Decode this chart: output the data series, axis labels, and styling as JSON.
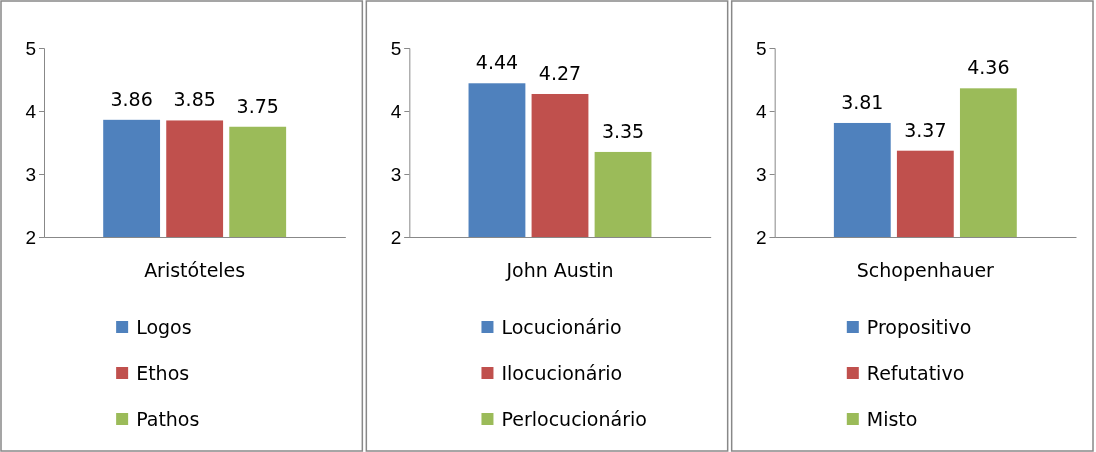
{
  "chart_data": [
    {
      "type": "bar",
      "categories": [
        null,
        null,
        null
      ],
      "xlabel": "Aristóteles",
      "stacked": true,
      "ylim": [
        2,
        5
      ],
      "yticks": [
        2,
        3,
        4,
        5
      ],
      "data_labels": true,
      "legend": "bottom",
      "series": [
        {
          "name": "Logos",
          "color": "#4f81bd",
          "values": [
            3.86,
            null,
            null
          ]
        },
        {
          "name": "Ethos",
          "color": "#c0504d",
          "values": [
            null,
            3.85,
            null
          ]
        },
        {
          "name": "Pathos",
          "color": "#9bbb59",
          "values": [
            null,
            null,
            3.75
          ]
        }
      ]
    },
    {
      "type": "bar",
      "categories": [
        null,
        null,
        null
      ],
      "xlabel": "John Austin",
      "stacked": true,
      "ylim": [
        2,
        5
      ],
      "yticks": [
        2,
        3,
        4,
        5
      ],
      "data_labels": true,
      "legend": "bottom",
      "series": [
        {
          "name": "Locucionário",
          "color": "#4f81bd",
          "values": [
            4.44,
            null,
            null
          ]
        },
        {
          "name": "Ilocucionário",
          "color": "#c0504d",
          "values": [
            null,
            4.27,
            null
          ]
        },
        {
          "name": "Perlocucionário",
          "color": "#9bbb59",
          "values": [
            null,
            null,
            3.35
          ]
        }
      ]
    },
    {
      "type": "bar",
      "categories": [
        null,
        null,
        null
      ],
      "xlabel": "Schopenhauer",
      "stacked": true,
      "ylim": [
        2,
        5
      ],
      "yticks": [
        2,
        3,
        4,
        5
      ],
      "data_labels": true,
      "legend": "bottom",
      "series": [
        {
          "name": "Propositivo",
          "color": "#4f81bd",
          "values": [
            3.81,
            null,
            null
          ]
        },
        {
          "name": "Refutativo",
          "color": "#c0504d",
          "values": [
            null,
            3.37,
            null
          ]
        },
        {
          "name": "Misto",
          "color": "#9bbb59",
          "values": [
            null,
            null,
            4.36
          ]
        }
      ]
    }
  ]
}
